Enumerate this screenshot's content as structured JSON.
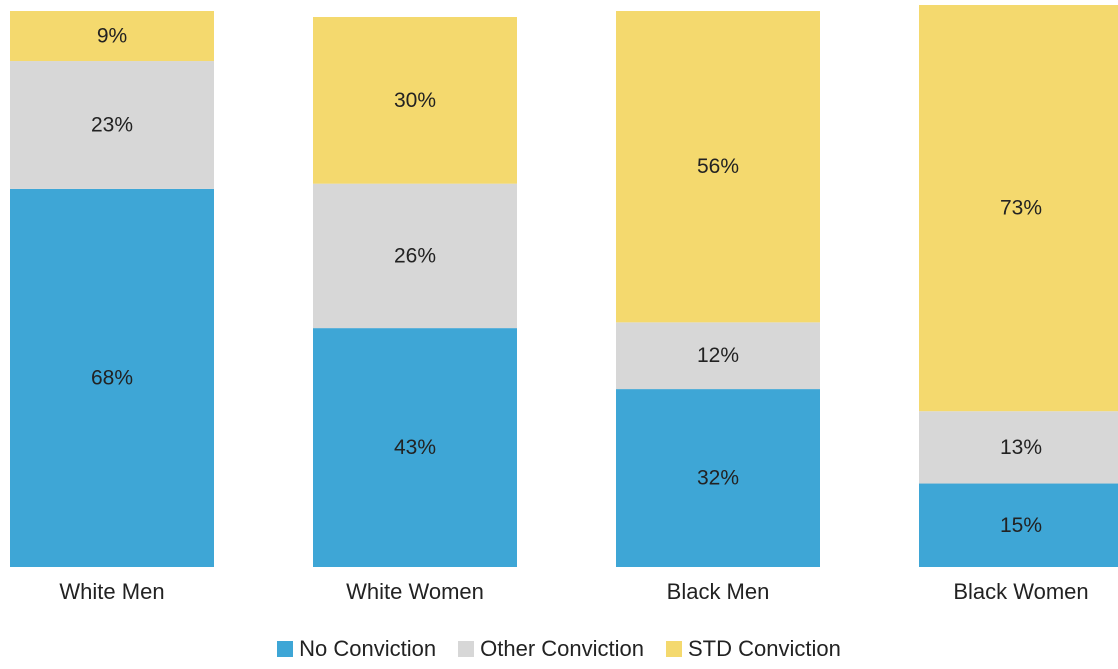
{
  "chart_data": {
    "type": "bar",
    "stacked": true,
    "categories": [
      "White Men",
      "White Women",
      "Black Men",
      "Black Women"
    ],
    "series": [
      {
        "name": "No Conviction",
        "color": "#3ea6d6",
        "values": [
          68,
          43,
          32,
          15
        ]
      },
      {
        "name": "Other Conviction",
        "color": "#d7d7d7",
        "values": [
          23,
          26,
          12,
          13
        ]
      },
      {
        "name": "STD Conviction",
        "color": "#f4d96e",
        "values": [
          9,
          30,
          56,
          73
        ]
      }
    ],
    "value_suffix": "%",
    "legend_position": "bottom",
    "grid": false
  }
}
